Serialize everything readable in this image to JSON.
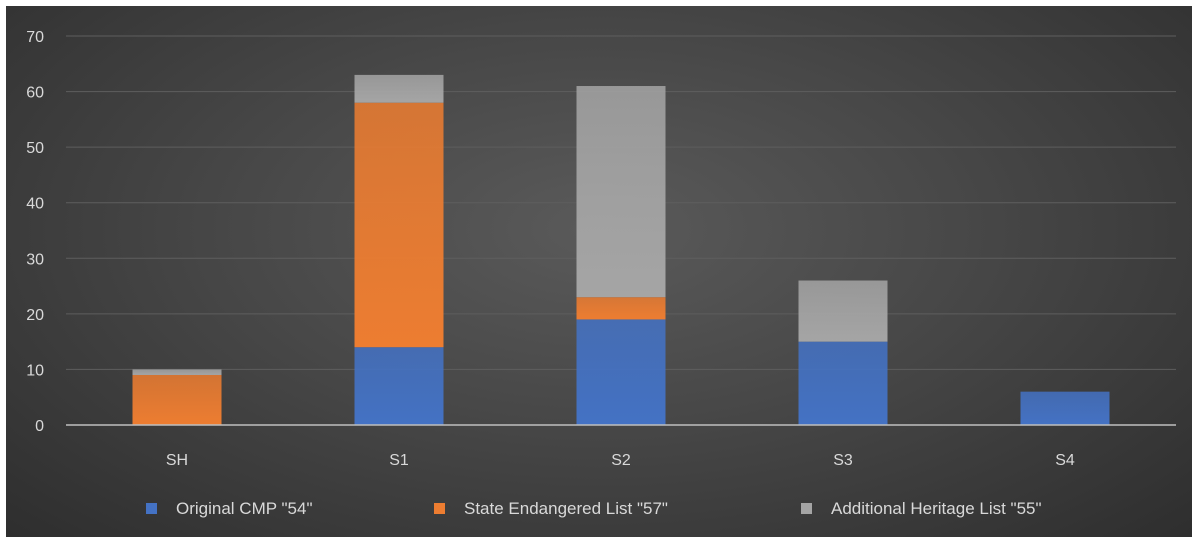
{
  "chart_data": {
    "type": "bar",
    "stacked": true,
    "categories": [
      "SH",
      "S1",
      "S2",
      "S3",
      "S4"
    ],
    "series": [
      {
        "name": "Original CMP \"54\"",
        "color": "#4472c4",
        "values": [
          0,
          14,
          19,
          15,
          6
        ]
      },
      {
        "name": "State Endangered List \"57\"",
        "color": "#ed7d31",
        "values": [
          9,
          44,
          4,
          0,
          0
        ]
      },
      {
        "name": "Additional Heritage List \"55\"",
        "color": "#a5a5a5",
        "values": [
          1,
          5,
          38,
          11,
          0
        ]
      }
    ],
    "ylim": [
      0,
      70
    ],
    "yticks": [
      0,
      10,
      20,
      30,
      40,
      50,
      60,
      70
    ],
    "grid": true,
    "legend": "bottom",
    "title": "",
    "xlabel": "",
    "ylabel": ""
  }
}
